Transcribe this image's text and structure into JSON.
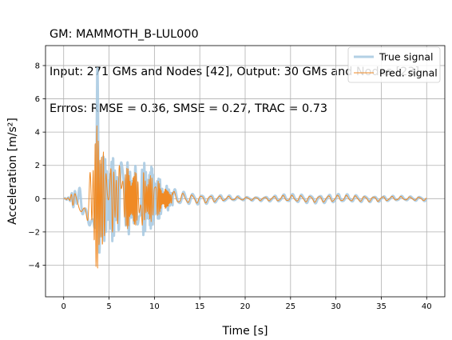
{
  "chart_data": {
    "type": "line",
    "title_lines": [
      "GM: MAMMOTH_B-LUL000",
      "Input: 271 GMs and Nodes [42], Output: 30 GMs and Nodes [23]",
      "Errros: RMSE = 0.36, SMSE = 0.27, TRAC = 0.73"
    ],
    "xlabel": "Time [s]",
    "ylabel": "Acceleration [m/s²]",
    "xlim": [
      -2,
      42
    ],
    "ylim": [
      -5.9,
      9.2
    ],
    "xticks": [
      0,
      5,
      10,
      15,
      20,
      25,
      30,
      35,
      40
    ],
    "yticks": [
      -4,
      -2,
      0,
      2,
      4,
      6,
      8
    ],
    "grid": true,
    "legend_placement": "top-right",
    "series": [
      {
        "name": "True signal",
        "color": "#a6c8e0",
        "envelope": [
          [
            0.0,
            0.0
          ],
          [
            0.5,
            0.1
          ],
          [
            1.0,
            0.5
          ],
          [
            1.5,
            0.6
          ],
          [
            2.0,
            1.1
          ],
          [
            2.5,
            1.4
          ],
          [
            3.0,
            1.8
          ],
          [
            3.5,
            3.5
          ],
          [
            3.7,
            8.4
          ],
          [
            4.0,
            4.5
          ],
          [
            4.5,
            2.5
          ],
          [
            5.0,
            2.2
          ],
          [
            5.5,
            2.7
          ],
          [
            6.0,
            2.3
          ],
          [
            6.5,
            2.5
          ],
          [
            7.0,
            2.3
          ],
          [
            7.5,
            2.1
          ],
          [
            8.0,
            2.0
          ],
          [
            8.5,
            2.1
          ],
          [
            9.0,
            2.3
          ],
          [
            9.5,
            2.0
          ],
          [
            10.0,
            1.8
          ],
          [
            10.5,
            1.3
          ],
          [
            11.0,
            0.9
          ],
          [
            12.0,
            0.6
          ],
          [
            13.0,
            0.45
          ],
          [
            14.0,
            0.4
          ],
          [
            15.0,
            0.35
          ],
          [
            16.0,
            0.3
          ],
          [
            18.0,
            0.2
          ],
          [
            20.0,
            0.12
          ],
          [
            22.0,
            0.15
          ],
          [
            24.0,
            0.25
          ],
          [
            26.0,
            0.3
          ],
          [
            28.0,
            0.28
          ],
          [
            30.0,
            0.3
          ],
          [
            32.0,
            0.25
          ],
          [
            34.0,
            0.2
          ],
          [
            36.0,
            0.18
          ],
          [
            38.0,
            0.15
          ],
          [
            40.0,
            0.15
          ]
        ]
      },
      {
        "name": "Pred. signal",
        "color": "#f08a24",
        "envelope": [
          [
            0.0,
            0.0
          ],
          [
            0.5,
            0.1
          ],
          [
            1.0,
            0.4
          ],
          [
            1.5,
            0.5
          ],
          [
            2.0,
            0.9
          ],
          [
            2.5,
            1.3
          ],
          [
            3.0,
            2.2
          ],
          [
            3.5,
            3.8
          ],
          [
            3.7,
            4.9
          ],
          [
            3.9,
            5.2
          ],
          [
            4.5,
            2.3
          ],
          [
            5.0,
            1.8
          ],
          [
            5.5,
            2.2
          ],
          [
            6.0,
            2.0
          ],
          [
            6.5,
            2.0
          ],
          [
            7.0,
            1.9
          ],
          [
            7.5,
            1.8
          ],
          [
            8.0,
            1.7
          ],
          [
            8.5,
            1.7
          ],
          [
            9.0,
            1.6
          ],
          [
            9.5,
            1.4
          ],
          [
            10.0,
            1.4
          ],
          [
            10.5,
            1.0
          ],
          [
            11.0,
            0.7
          ],
          [
            12.0,
            0.45
          ],
          [
            13.0,
            0.35
          ],
          [
            14.0,
            0.3
          ],
          [
            15.0,
            0.28
          ],
          [
            16.0,
            0.25
          ],
          [
            18.0,
            0.15
          ],
          [
            20.0,
            0.1
          ],
          [
            22.0,
            0.12
          ],
          [
            24.0,
            0.2
          ],
          [
            26.0,
            0.22
          ],
          [
            28.0,
            0.22
          ],
          [
            30.0,
            0.22
          ],
          [
            32.0,
            0.2
          ],
          [
            34.0,
            0.18
          ],
          [
            36.0,
            0.15
          ],
          [
            38.0,
            0.12
          ],
          [
            40.0,
            0.12
          ]
        ]
      }
    ]
  }
}
